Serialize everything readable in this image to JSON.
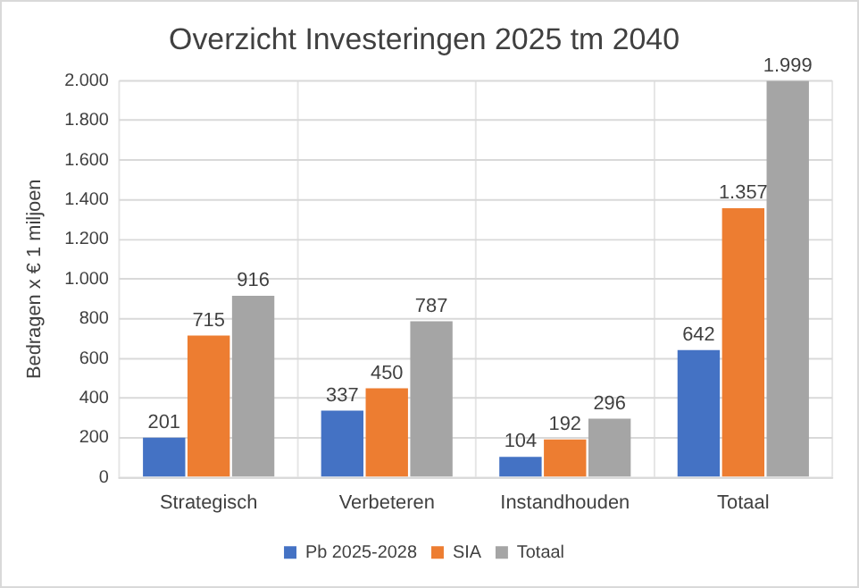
{
  "chart_data": {
    "type": "bar",
    "title": "Overzicht Investeringen 2025 tm 2040",
    "ylabel": "Bedragen x € 1 miljoen",
    "categories": [
      "Strategisch",
      "Verbeteren",
      "Instandhouden",
      "Totaal"
    ],
    "series": [
      {
        "name": "Pb 2025-2028",
        "color": "#4472c4",
        "values": [
          201,
          337,
          104,
          642
        ],
        "value_labels": [
          "201",
          "337",
          "104",
          "642"
        ]
      },
      {
        "name": "SIA",
        "color": "#ed7d31",
        "values": [
          715,
          450,
          192,
          1357
        ],
        "value_labels": [
          "715",
          "450",
          "192",
          "1.357"
        ]
      },
      {
        "name": "Totaal",
        "color": "#a5a5a5",
        "values": [
          916,
          787,
          296,
          1999
        ],
        "value_labels": [
          "916",
          "787",
          "296",
          "1.999"
        ]
      }
    ],
    "ylim": [
      0,
      2000
    ],
    "yticks": [
      0,
      200,
      400,
      600,
      800,
      {
        "value": 1000,
        "label": "1.000"
      },
      {
        "value": 1200,
        "label": "1.200"
      },
      {
        "value": 1400,
        "label": "1.400"
      },
      {
        "value": 1600,
        "label": "1.600"
      },
      {
        "value": 1800,
        "label": "1.800"
      },
      {
        "value": 2000,
        "label": "2.000"
      }
    ],
    "grid": true,
    "legend": "bottom"
  }
}
